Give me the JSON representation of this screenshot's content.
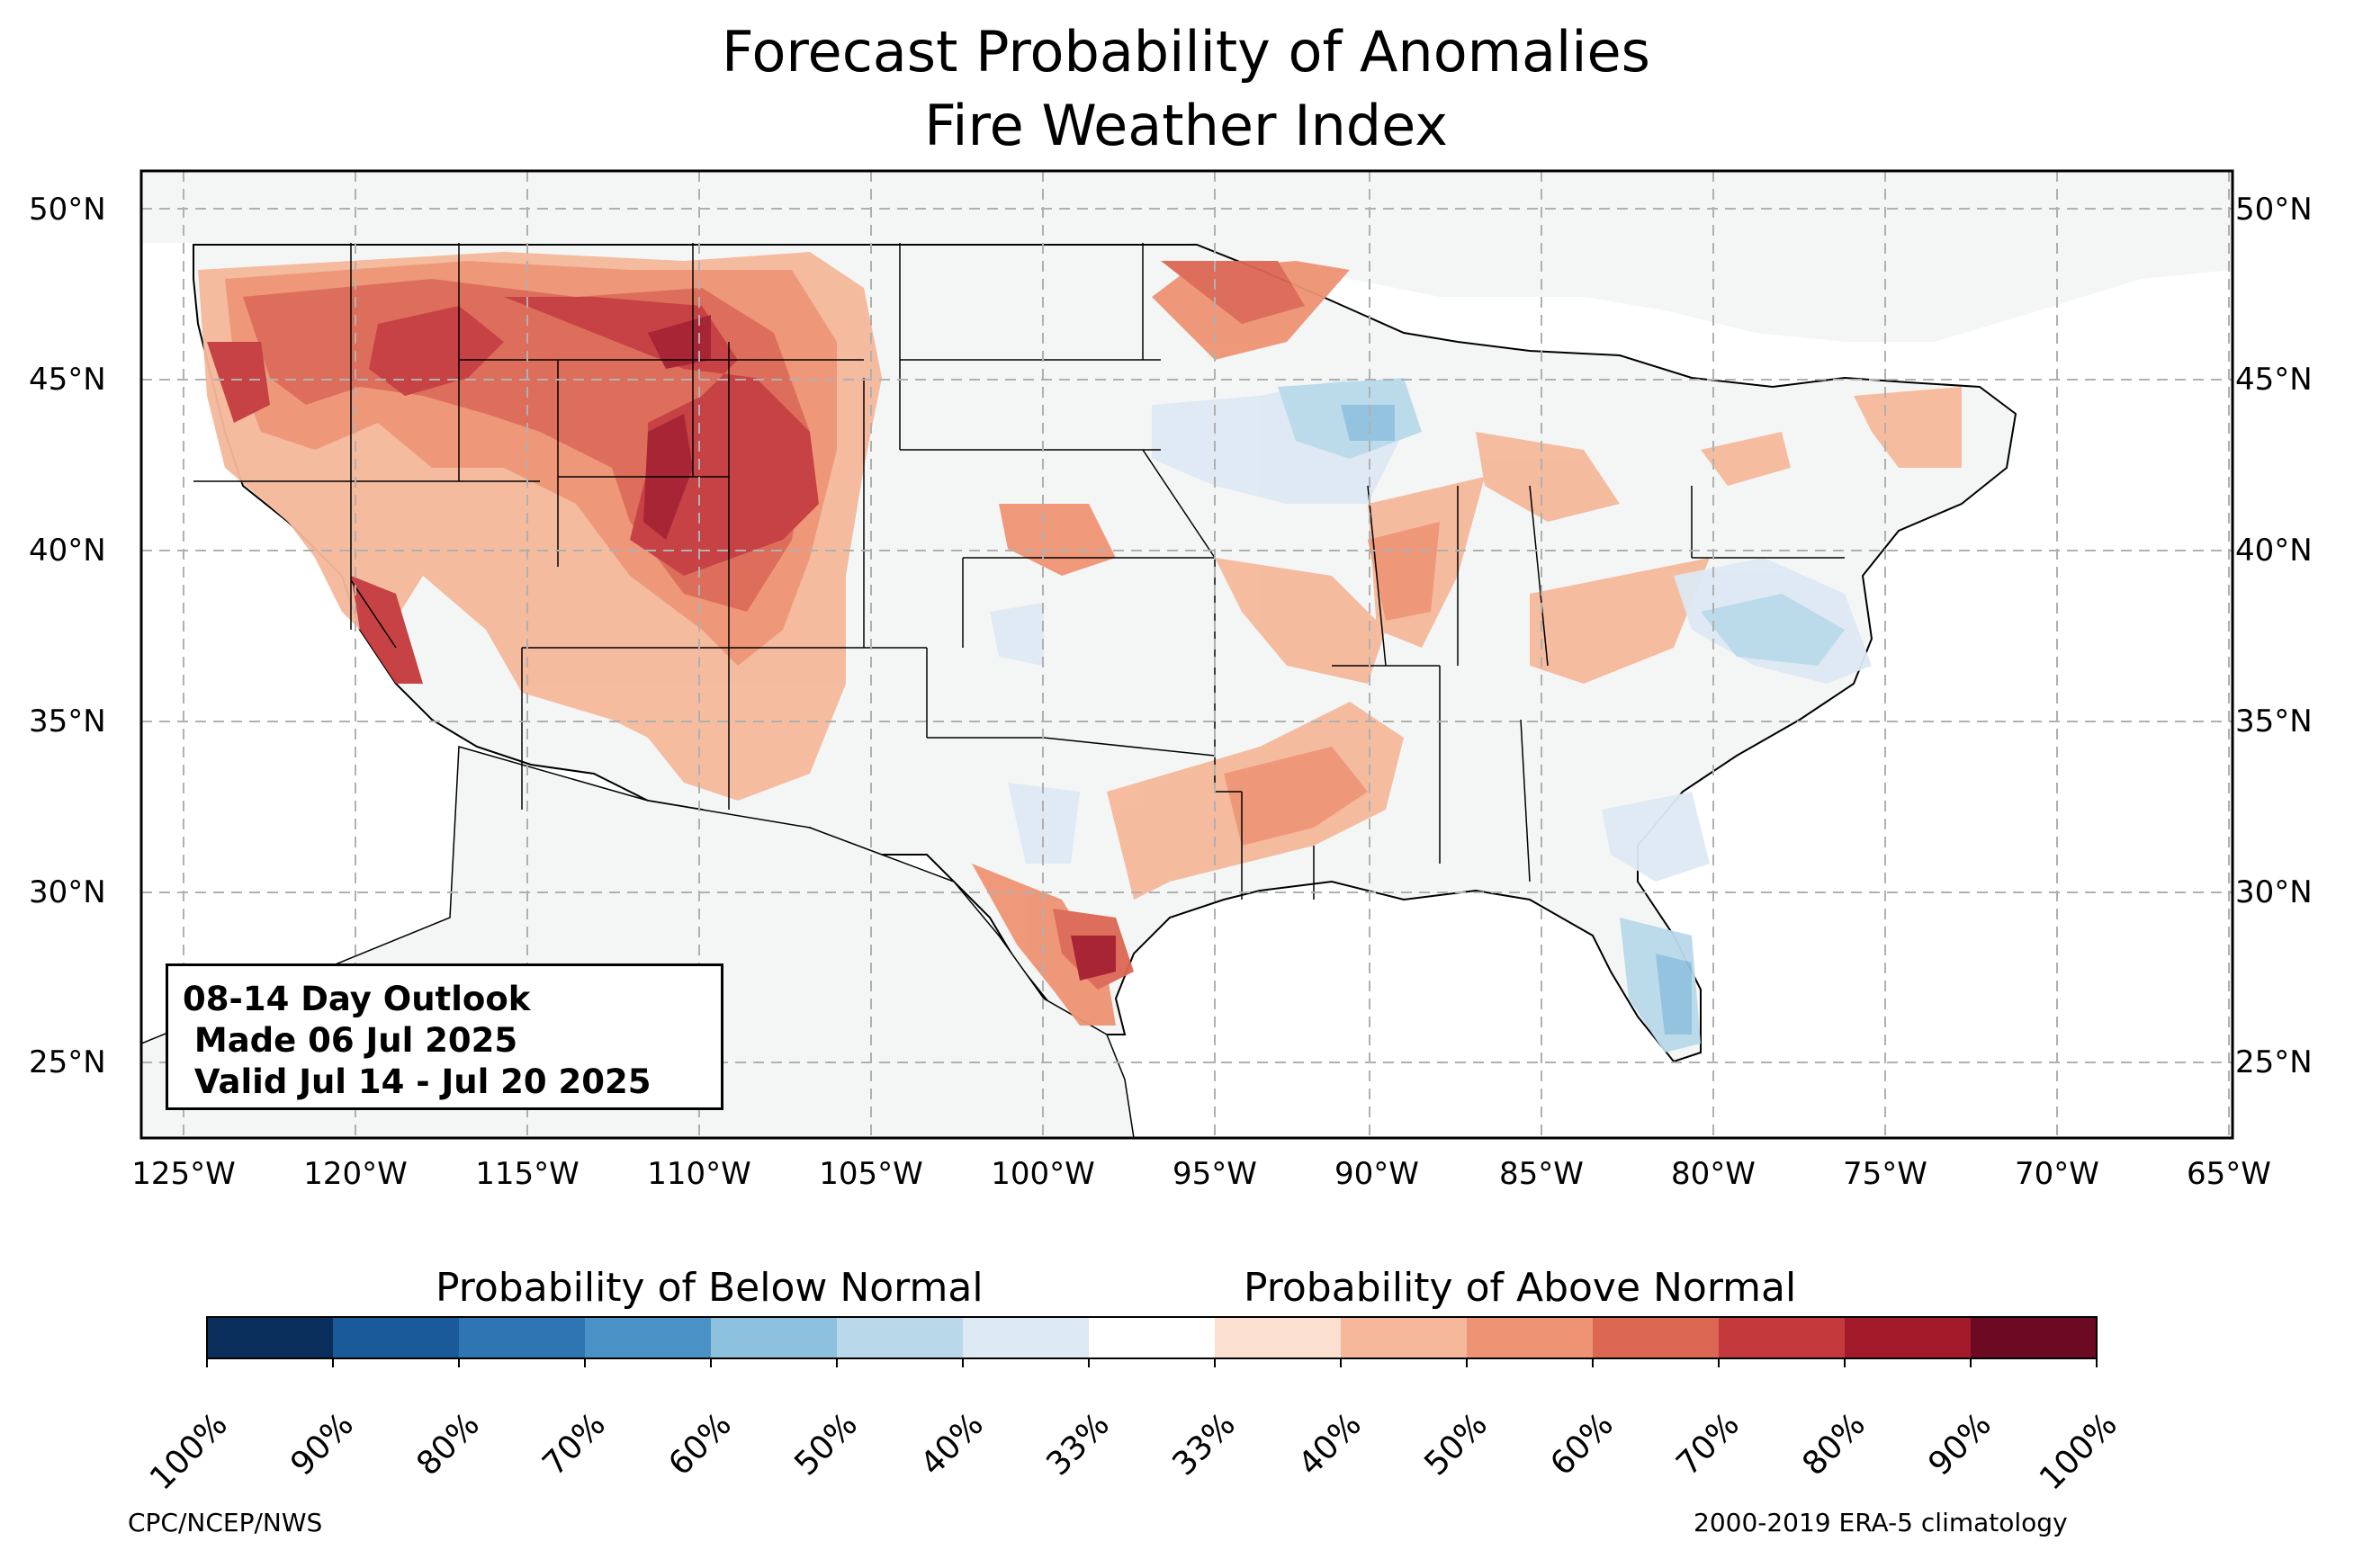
{
  "title": {
    "line1": "Forecast Probability of Anomalies",
    "line2": "Fire Weather Index"
  },
  "outlook": {
    "line1": "08-14 Day Outlook",
    "line2": " Made 06 Jul 2025",
    "line3": " Valid Jul 14 - Jul 20 2025"
  },
  "lat_labels": [
    "50°N",
    "45°N",
    "40°N",
    "35°N",
    "30°N",
    "25°N"
  ],
  "lon_labels": [
    "125°W",
    "120°W",
    "115°W",
    "110°W",
    "105°W",
    "100°W",
    "95°W",
    "90°W",
    "85°W",
    "80°W",
    "75°W",
    "70°W",
    "65°W"
  ],
  "colorbar": {
    "below_label": "Probability of Below Normal",
    "above_label": "Probability of Above Normal",
    "ticks": [
      "100%",
      "90%",
      "80%",
      "70%",
      "60%",
      "50%",
      "40%",
      "33%",
      "33%",
      "40%",
      "50%",
      "60%",
      "70%",
      "80%",
      "90%",
      "100%"
    ],
    "colors": [
      "#0a2e5c",
      "#1a5a9a",
      "#2f74b3",
      "#4a92c6",
      "#8ec1dd",
      "#b9d9ea",
      "#dde9f3",
      "#ffffff",
      "#fbe0d2",
      "#f5b89b",
      "#ee9373",
      "#dc6753",
      "#c4393b",
      "#a31a2b",
      "#6b0a22"
    ]
  },
  "footer": {
    "left": "CPC/NCEP/NWS",
    "right": "2000-2019 ERA-5 climatology"
  },
  "map_colors": {
    "land": "#f4f6f6",
    "above_40": "#f5b89b",
    "above_50": "#ee9373",
    "above_60": "#dc6753",
    "above_70": "#c4393b",
    "above_80": "#a31a2b",
    "below_40": "#dde9f3",
    "below_50": "#b9d9ea",
    "below_60": "#8ec1dd"
  }
}
